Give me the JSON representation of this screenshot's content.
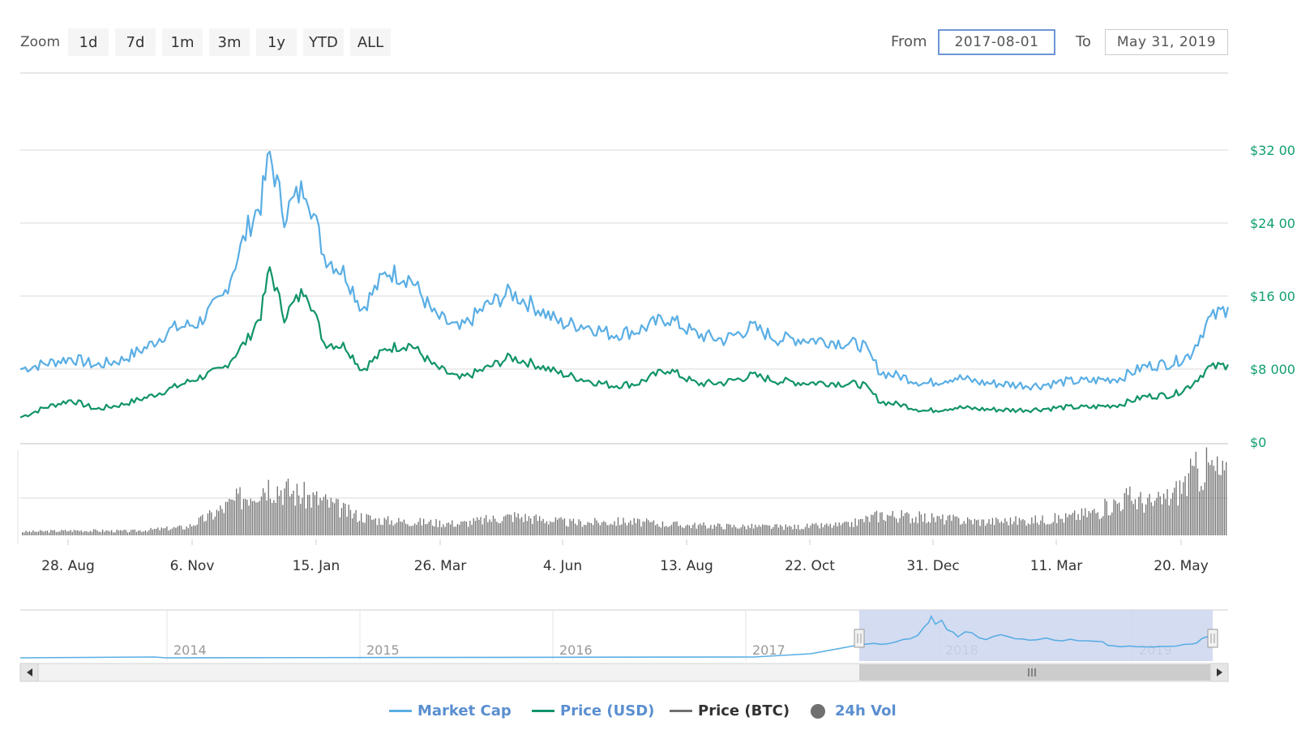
{
  "toolbar": {
    "zoom_label": "Zoom",
    "zoom_buttons": [
      "1d",
      "7d",
      "1m",
      "3m",
      "1y",
      "YTD",
      "ALL"
    ],
    "from_label": "From",
    "from_value": "2017-08-01",
    "to_label": "To",
    "to_value": "May 31, 2019"
  },
  "colors": {
    "market_cap": "#5aaee4",
    "price_usd": "#11936a",
    "price_btc": "#707070",
    "volume": "#707070",
    "axis_text": "#333333",
    "right_axis": "#11a06c",
    "navigator_fill": "#ccd6ee"
  },
  "chart_data": {
    "type": "line",
    "x_tick_labels": [
      "28. Aug",
      "6. Nov",
      "15. Jan",
      "26. Mar",
      "4. Jun",
      "13. Aug",
      "22. Oct",
      "31. Dec",
      "11. Mar",
      "20. May"
    ],
    "y_right_ticks": [
      "$32 00",
      "$24 00",
      "$16 00",
      "$8 000",
      "$0"
    ],
    "y_right_range": [
      0,
      32000
    ],
    "grid": true,
    "legend_position": "bottom-center",
    "series": [
      {
        "name": "Market Cap",
        "x": [
          "2017-08-01",
          "2017-08-15",
          "2017-08-29",
          "2017-09-12",
          "2017-09-26",
          "2017-10-10",
          "2017-10-24",
          "2017-11-07",
          "2017-11-21",
          "2017-12-05",
          "2017-12-12",
          "2017-12-17",
          "2017-12-25",
          "2018-01-06",
          "2018-01-16",
          "2018-01-28",
          "2018-02-06",
          "2018-02-20",
          "2018-03-05",
          "2018-03-18",
          "2018-04-01",
          "2018-04-15",
          "2018-04-29",
          "2018-05-13",
          "2018-05-27",
          "2018-06-10",
          "2018-06-24",
          "2018-07-08",
          "2018-07-25",
          "2018-08-10",
          "2018-08-25",
          "2018-09-10",
          "2018-09-24",
          "2018-10-08",
          "2018-10-22",
          "2018-11-10",
          "2018-11-20",
          "2018-12-01",
          "2018-12-15",
          "2018-12-31",
          "2019-01-15",
          "2019-02-01",
          "2019-02-15",
          "2019-03-01",
          "2019-03-15",
          "2019-04-01",
          "2019-04-15",
          "2019-05-01",
          "2019-05-10",
          "2019-05-20",
          "2019-05-31"
        ],
        "y": [
          8000,
          8600,
          9200,
          8400,
          9000,
          10400,
          12400,
          13000,
          15800,
          23500,
          26200,
          31500,
          25000,
          28200,
          20500,
          18400,
          14600,
          18700,
          17900,
          13900,
          12300,
          14800,
          16400,
          14800,
          13000,
          12800,
          11800,
          12200,
          13600,
          11800,
          11200,
          12600,
          11300,
          11300,
          11100,
          10600,
          7600,
          7200,
          6400,
          7100,
          6500,
          6300,
          6200,
          6600,
          6700,
          7000,
          8300,
          8700,
          9600,
          13300,
          14800
        ]
      },
      {
        "name": "Price (USD)",
        "x": [
          "2017-08-01",
          "2017-08-15",
          "2017-08-29",
          "2017-09-12",
          "2017-09-26",
          "2017-10-10",
          "2017-10-24",
          "2017-11-07",
          "2017-11-21",
          "2017-12-05",
          "2017-12-12",
          "2017-12-17",
          "2017-12-25",
          "2018-01-06",
          "2018-01-16",
          "2018-01-28",
          "2018-02-06",
          "2018-02-20",
          "2018-03-05",
          "2018-03-18",
          "2018-04-01",
          "2018-04-15",
          "2018-04-29",
          "2018-05-13",
          "2018-05-27",
          "2018-06-10",
          "2018-06-24",
          "2018-07-08",
          "2018-07-25",
          "2018-08-10",
          "2018-08-25",
          "2018-09-10",
          "2018-09-24",
          "2018-10-08",
          "2018-10-22",
          "2018-11-10",
          "2018-11-20",
          "2018-12-01",
          "2018-12-15",
          "2018-12-31",
          "2019-01-15",
          "2019-02-01",
          "2019-02-15",
          "2019-03-01",
          "2019-03-15",
          "2019-04-01",
          "2019-04-15",
          "2019-05-01",
          "2019-05-10",
          "2019-05-20",
          "2019-05-31"
        ],
        "y": [
          2700,
          3800,
          4600,
          3600,
          4100,
          4900,
          5900,
          7000,
          8000,
          11300,
          14000,
          19000,
          13800,
          16900,
          10900,
          10500,
          7900,
          10300,
          10700,
          8300,
          6900,
          8000,
          9300,
          8500,
          7500,
          6800,
          6200,
          6400,
          8000,
          6400,
          6500,
          7300,
          6700,
          6500,
          6500,
          6300,
          4400,
          4100,
          3400,
          3800,
          3600,
          3500,
          3600,
          3800,
          3800,
          4100,
          5000,
          5200,
          6200,
          8100,
          8500
        ]
      }
    ],
    "volume_bars": {
      "name": "24h Vol",
      "x": [
        "2017-08-01",
        "2017-09-01",
        "2017-10-01",
        "2017-11-01",
        "2017-11-15",
        "2017-12-01",
        "2017-12-15",
        "2018-01-01",
        "2018-01-15",
        "2018-02-01",
        "2018-02-15",
        "2018-03-01",
        "2018-04-01",
        "2018-05-01",
        "2018-06-01",
        "2018-07-01",
        "2018-08-01",
        "2018-09-01",
        "2018-10-01",
        "2018-11-01",
        "2018-11-20",
        "2018-12-15",
        "2019-01-15",
        "2019-02-15",
        "2019-03-01",
        "2019-03-20",
        "2019-04-05",
        "2019-04-20",
        "2019-05-01",
        "2019-05-12",
        "2019-05-20",
        "2019-05-31"
      ],
      "y": [
        0.05,
        0.07,
        0.06,
        0.12,
        0.3,
        0.55,
        0.75,
        0.6,
        0.5,
        0.3,
        0.22,
        0.2,
        0.17,
        0.28,
        0.18,
        0.2,
        0.15,
        0.13,
        0.12,
        0.15,
        0.3,
        0.25,
        0.2,
        0.22,
        0.25,
        0.35,
        0.55,
        0.45,
        0.6,
        0.9,
        1.0,
        0.8
      ]
    }
  },
  "navigator": {
    "year_labels": [
      "2014",
      "2015",
      "2016",
      "2017",
      "2018",
      "2019"
    ],
    "scroll_left_icon": "triangle-left-icon",
    "scroll_right_icon": "triangle-right-icon"
  },
  "legend": {
    "items": [
      "Market Cap",
      "Price (USD)",
      "Price (BTC)",
      "24h Vol"
    ]
  }
}
